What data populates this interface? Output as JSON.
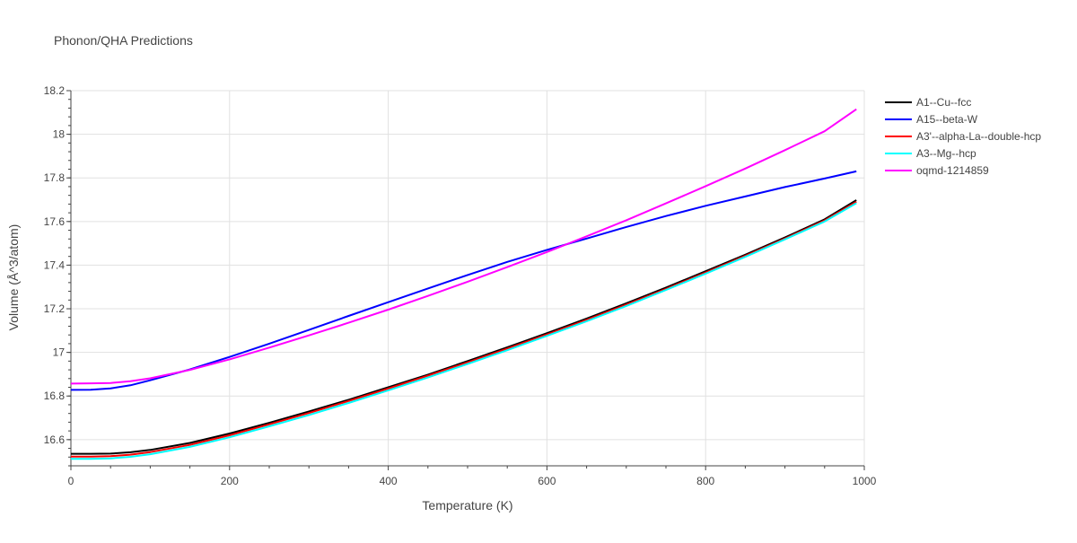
{
  "chart_data": {
    "type": "line",
    "title": "Phonon/QHA Predictions",
    "xlabel": "Temperature (K)",
    "ylabel": "Volume (Å^3/atom)",
    "xlim": [
      0,
      1000
    ],
    "ylim": [
      16.48,
      18.2
    ],
    "x_ticks": [
      0,
      200,
      400,
      600,
      800,
      1000
    ],
    "y_ticks": [
      16.6,
      16.8,
      17,
      17.2,
      17.4,
      17.6,
      17.8,
      18,
      18.2
    ],
    "x_tick_labels": [
      "0",
      "200",
      "400",
      "600",
      "800",
      "1000"
    ],
    "y_tick_labels": [
      "16.6",
      "16.8",
      "17",
      "17.2",
      "17.4",
      "17.6",
      "17.8",
      "18",
      "18.2"
    ],
    "grid": true,
    "legend_position": "top-right",
    "series": [
      {
        "name": "A1--Cu--fcc",
        "color": "#000000",
        "x": [
          0,
          25,
          50,
          75,
          100,
          150,
          200,
          250,
          300,
          350,
          400,
          450,
          500,
          550,
          600,
          650,
          700,
          750,
          800,
          850,
          900,
          950,
          990
        ],
        "y": [
          16.535,
          16.535,
          16.536,
          16.542,
          16.553,
          16.585,
          16.628,
          16.677,
          16.729,
          16.783,
          16.84,
          16.898,
          16.96,
          17.023,
          17.088,
          17.155,
          17.225,
          17.297,
          17.372,
          17.448,
          17.527,
          17.61,
          17.698
        ]
      },
      {
        "name": "A15--beta-W",
        "color": "#0000ff",
        "x": [
          0,
          25,
          50,
          75,
          100,
          150,
          200,
          250,
          300,
          350,
          400,
          450,
          500,
          550,
          600,
          650,
          700,
          750,
          800,
          850,
          900,
          950,
          990
        ],
        "y": [
          16.828,
          16.829,
          16.835,
          16.849,
          16.872,
          16.922,
          16.979,
          17.04,
          17.103,
          17.167,
          17.23,
          17.293,
          17.355,
          17.415,
          17.47,
          17.522,
          17.575,
          17.625,
          17.672,
          17.715,
          17.758,
          17.797,
          17.83
        ]
      },
      {
        "name": "A3'--alpha-La--double-hcp",
        "color": "#ff0000",
        "x": [
          0,
          25,
          50,
          75,
          100,
          150,
          200,
          250,
          300,
          350,
          400,
          450,
          500,
          550,
          600,
          650,
          700,
          750,
          800,
          850,
          900,
          950,
          990
        ],
        "y": [
          16.522,
          16.522,
          16.524,
          16.531,
          16.543,
          16.576,
          16.62,
          16.67,
          16.722,
          16.777,
          16.834,
          16.893,
          16.954,
          17.017,
          17.082,
          17.149,
          17.219,
          17.291,
          17.366,
          17.443,
          17.522,
          17.605,
          17.69
        ]
      },
      {
        "name": "A3--Mg--hcp",
        "color": "#00ffff",
        "x": [
          0,
          25,
          50,
          75,
          100,
          150,
          200,
          250,
          300,
          350,
          400,
          450,
          500,
          550,
          600,
          650,
          700,
          750,
          800,
          850,
          900,
          950,
          990
        ],
        "y": [
          16.512,
          16.512,
          16.514,
          16.521,
          16.533,
          16.567,
          16.611,
          16.661,
          16.713,
          16.768,
          16.826,
          16.885,
          16.947,
          17.01,
          17.076,
          17.143,
          17.213,
          17.286,
          17.361,
          17.438,
          17.518,
          17.6,
          17.684
        ]
      },
      {
        "name": "oqmd-1214859",
        "color": "#ff00ff",
        "x": [
          0,
          25,
          50,
          75,
          100,
          150,
          200,
          250,
          300,
          350,
          400,
          450,
          500,
          550,
          600,
          650,
          700,
          750,
          800,
          850,
          900,
          950,
          990
        ],
        "y": [
          16.857,
          16.858,
          16.86,
          16.868,
          16.881,
          16.92,
          16.968,
          17.022,
          17.078,
          17.136,
          17.196,
          17.259,
          17.324,
          17.391,
          17.46,
          17.532,
          17.606,
          17.683,
          17.762,
          17.843,
          17.927,
          18.014,
          18.115
        ]
      }
    ]
  }
}
